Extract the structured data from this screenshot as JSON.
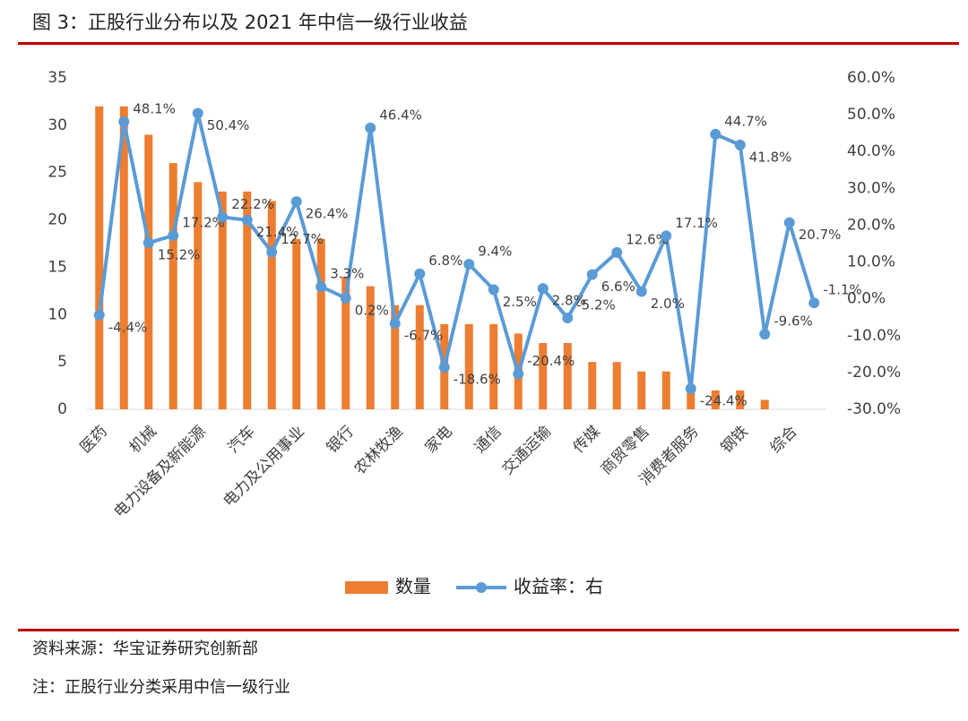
{
  "chart_data": {
    "type": "bar-line",
    "title": "图 3：正股行业分布以及 2021 年中信一级行业收益",
    "categories": [
      "医药",
      null,
      "机械",
      null,
      "电力设备及新能源",
      null,
      "汽车",
      null,
      "电力及公用事业",
      null,
      "银行",
      null,
      "农林牧渔",
      null,
      "家电",
      null,
      "通信",
      null,
      "交通运输",
      null,
      "传媒",
      null,
      "商贸零售",
      null,
      "消费者服务",
      null,
      "钢铁",
      null,
      "综合",
      null
    ],
    "series": [
      {
        "name": "数量",
        "type": "bar",
        "color": "#ed7d31",
        "values": [
          32,
          32,
          29,
          26,
          24,
          23,
          23,
          22,
          18,
          18,
          14,
          13,
          11,
          11,
          9,
          9,
          9,
          8,
          7,
          7,
          5,
          5,
          4,
          4,
          2,
          2,
          2,
          1,
          0,
          0
        ]
      },
      {
        "name": "收益率：右",
        "type": "line",
        "axis": "y2",
        "color": "#5b9bd5",
        "values": [
          -4.4,
          48.1,
          15.2,
          17.2,
          50.4,
          22.2,
          21.4,
          12.7,
          26.4,
          3.3,
          0.2,
          46.4,
          -6.7,
          6.8,
          -18.6,
          9.4,
          2.5,
          -20.4,
          2.8,
          -5.2,
          6.6,
          12.6,
          2.0,
          17.1,
          -24.4,
          44.7,
          41.8,
          -9.6,
          20.7,
          -1.1
        ],
        "value_labels": [
          "-4.4%",
          "48.1%",
          "15.2%",
          "17.2%",
          "50.4%",
          "22.2%",
          "21.4%",
          "12.7%",
          "26.4%",
          "3.3%",
          "0.2%",
          "46.4%",
          "-6.7%",
          "6.8%",
          "-18.6%",
          "9.4%",
          "2.5%",
          "-20.4%",
          "2.8%",
          "-5.2%",
          "6.6%",
          "12.6%",
          "2.0%",
          "17.1%",
          "-24.4%",
          "44.7%",
          "41.8%",
          "-9.6%",
          "20.7%",
          "-1.1%"
        ]
      }
    ],
    "ylim": [
      0,
      35
    ],
    "yticks": [
      0,
      5,
      10,
      15,
      20,
      25,
      30,
      35
    ],
    "y2lim": [
      -30,
      60
    ],
    "y2ticks": [
      {
        "value": -30,
        "label": "-30.0%"
      },
      {
        "value": -20,
        "label": "-20.0%"
      },
      {
        "value": -10,
        "label": "-10.0%"
      },
      {
        "value": 0,
        "label": "0.0%"
      },
      {
        "value": 10,
        "label": "10.0%"
      },
      {
        "value": 20,
        "label": "20.0%"
      },
      {
        "value": 30,
        "label": "30.0%"
      },
      {
        "value": 40,
        "label": "40.0%"
      },
      {
        "value": 50,
        "label": "50.0%"
      },
      {
        "value": 60,
        "label": "60.0%"
      }
    ],
    "legend": "bottom",
    "source": "资料来源：华宝证券研究创新部",
    "note": "注：正股行业分类采用中信一级行业"
  }
}
